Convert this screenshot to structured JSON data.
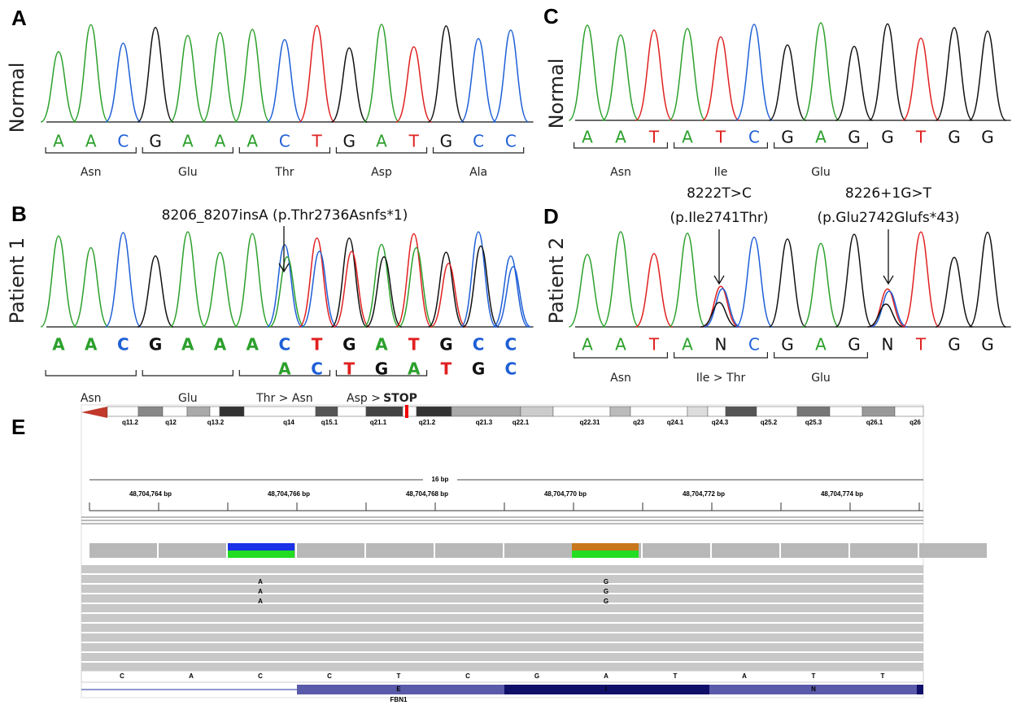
{
  "base_colors": {
    "A": "#2ca02c",
    "C": "#1f5fd6",
    "G": "#111111",
    "T": "#e02020",
    "N": "#111111"
  },
  "panels": [
    {
      "label": "A",
      "row_label": "Normal",
      "bases": [
        "A",
        "A",
        "C",
        "G",
        "A",
        "A",
        "A",
        "C",
        "T",
        "G",
        "A",
        "T",
        "G",
        "C",
        "C"
      ],
      "codons": [
        "Asn",
        "Glu",
        "Thr",
        "Asp",
        "Ala"
      ]
    },
    {
      "label": "B",
      "row_label": "Patient 1",
      "annotations": [
        "8206_8207insA (p.Thr2736Asnfs*1)"
      ],
      "bases": [
        "A",
        "A",
        "C",
        "G",
        "A",
        "A",
        "A",
        "C",
        "T",
        "G",
        "A",
        "T",
        "G",
        "C",
        "C"
      ],
      "bases_shifted": [
        "A",
        "C",
        "T",
        "G",
        "A",
        "T",
        "G",
        "C"
      ],
      "codons": [
        "Asn",
        "Glu",
        "Thr > Asn",
        "Asp >"
      ],
      "stop_label": "STOP"
    },
    {
      "label": "C",
      "row_label": "Normal",
      "bases": [
        "A",
        "A",
        "T",
        "A",
        "T",
        "C",
        "G",
        "A",
        "G",
        "G",
        "T",
        "G",
        "G"
      ],
      "codons": [
        "Asn",
        "Ile",
        "Glu"
      ]
    },
    {
      "label": "D",
      "row_label": "Patient 2",
      "annotations": [
        "8222T>C",
        "(p.Ile2741Thr)",
        "8226+1G>T",
        "(p.Glu2742Glufs*43)"
      ],
      "bases": [
        "A",
        "A",
        "T",
        "A",
        "N",
        "C",
        "G",
        "A",
        "G",
        "N",
        "T",
        "G",
        "G"
      ],
      "codons": [
        "Asn",
        "Ile > Thr",
        "Glu"
      ]
    }
  ],
  "igv": {
    "label": "E",
    "cytobands": [
      "q11.2",
      "q12",
      "q13.2",
      "q14",
      "q15.1",
      "q21.1",
      "q21.2",
      "q21.3",
      "q22.1",
      "q22.31",
      "q23",
      "q24.1",
      "q24.3",
      "q25.2",
      "q25.3",
      "q26.1",
      "q26"
    ],
    "span": "16 bp",
    "coordinates": [
      "48,704,764 bp",
      "48,704,766 bp",
      "48,704,768 bp",
      "48,704,770 bp",
      "48,704,772 bp",
      "48,704,774 bp"
    ],
    "read_variants": [
      [
        "A",
        "G"
      ],
      [
        "A",
        "G"
      ],
      [
        "A",
        "G"
      ]
    ],
    "reference": [
      "C",
      "A",
      "C",
      "C",
      "T",
      "C",
      "G",
      "A",
      "T",
      "A",
      "T",
      "T"
    ],
    "exon_letters": [
      "E",
      "I",
      "N"
    ],
    "gene": "FBN1"
  }
}
